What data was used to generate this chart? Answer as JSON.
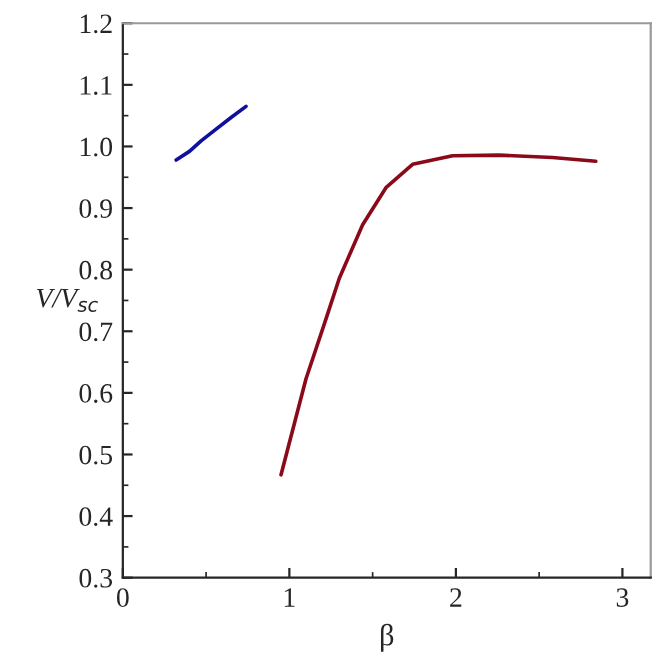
{
  "chart_data": {
    "type": "line",
    "xlabel": "β",
    "ylabel": "V/V$_{sc}$",
    "series": [
      {
        "color": "#1010a0",
        "x": [
          0.32,
          0.4,
          0.47,
          0.56,
          0.65,
          0.74
        ],
        "values": [
          0.978,
          0.992,
          1.009,
          1.028,
          1.047,
          1.065
        ]
      },
      {
        "color": "#8b0a1a",
        "x": [
          0.95,
          1.1,
          1.22,
          1.3,
          1.44,
          1.58,
          1.74,
          1.98,
          2.26,
          2.58,
          2.84
        ],
        "values": [
          0.467,
          0.623,
          0.72,
          0.786,
          0.873,
          0.933,
          0.971,
          0.985,
          0.986,
          0.982,
          0.976
        ]
      }
    ],
    "xlim": [
      0,
      3.17
    ],
    "xticks": [
      0,
      1,
      2,
      3
    ],
    "ylim": [
      0.3,
      1.2
    ],
    "yticks": [
      0.3,
      0.4,
      0.5,
      0.6,
      0.7,
      0.8,
      0.9,
      {
        "value": 1.0,
        "label": "1.0"
      },
      1.1,
      1.2
    ],
    "grid": false,
    "legend": false,
    "marker": "none",
    "line_style": "solid"
  }
}
